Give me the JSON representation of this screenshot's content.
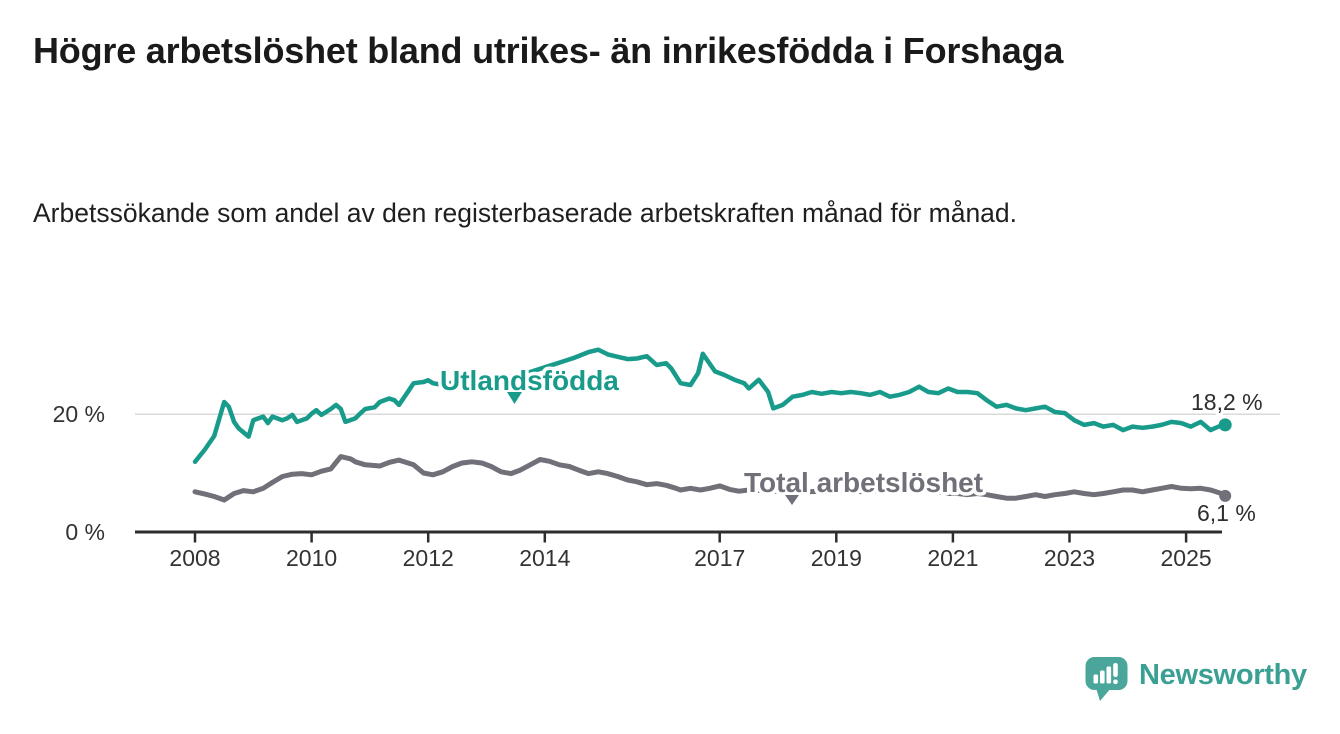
{
  "header": {
    "title": "Högre arbetslöshet bland utrikes- än inrikesfödda i Forshaga",
    "subtitle": "Arbetssökande som andel av den registerbaserade arbetskraften månad för månad."
  },
  "branding": {
    "logo_text": "Newsworthy",
    "logo_icon": "bar-chart-speech-bubble",
    "logo_bubble_color": "#4aa69b",
    "logo_text_color": "#3aa093"
  },
  "chart_data": {
    "type": "line",
    "x_axis": {
      "ticks": [
        2008,
        2010,
        2012,
        2014,
        2017,
        2019,
        2021,
        2023,
        2025
      ],
      "range": [
        2007.9,
        2026.2
      ]
    },
    "y_axis": {
      "ticks": [
        {
          "value": 0,
          "label": "0 %"
        },
        {
          "value": 20,
          "label": "20 %"
        }
      ],
      "range": [
        0,
        33
      ],
      "gridline_at": 20
    },
    "series": [
      {
        "name": "Utlandsfödda",
        "color": "#199b8b",
        "end_label": "18,2 %",
        "end_value": 18.2,
        "points": [
          [
            2008.0,
            11.9
          ],
          [
            2008.17,
            14.0
          ],
          [
            2008.33,
            16.3
          ],
          [
            2008.5,
            22.1
          ],
          [
            2008.58,
            21.3
          ],
          [
            2008.67,
            18.7
          ],
          [
            2008.75,
            17.6
          ],
          [
            2008.92,
            16.2
          ],
          [
            2009.0,
            19.0
          ],
          [
            2009.17,
            19.6
          ],
          [
            2009.25,
            18.5
          ],
          [
            2009.33,
            19.6
          ],
          [
            2009.5,
            19.0
          ],
          [
            2009.58,
            19.3
          ],
          [
            2009.67,
            19.9
          ],
          [
            2009.75,
            18.7
          ],
          [
            2009.92,
            19.3
          ],
          [
            2010.0,
            20.1
          ],
          [
            2010.08,
            20.7
          ],
          [
            2010.17,
            19.9
          ],
          [
            2010.33,
            20.9
          ],
          [
            2010.42,
            21.6
          ],
          [
            2010.5,
            20.9
          ],
          [
            2010.58,
            18.7
          ],
          [
            2010.75,
            19.3
          ],
          [
            2010.83,
            20.1
          ],
          [
            2010.92,
            20.9
          ],
          [
            2011.08,
            21.2
          ],
          [
            2011.17,
            22.1
          ],
          [
            2011.33,
            22.7
          ],
          [
            2011.42,
            22.4
          ],
          [
            2011.5,
            21.6
          ],
          [
            2011.67,
            24.1
          ],
          [
            2011.75,
            25.3
          ],
          [
            2011.92,
            25.5
          ],
          [
            2012.0,
            25.8
          ],
          [
            2012.08,
            25.3
          ],
          [
            2012.25,
            25.0
          ],
          [
            2012.5,
            25.6
          ],
          [
            2012.75,
            26.2
          ],
          [
            2013.0,
            26.5
          ],
          [
            2013.25,
            26.1
          ],
          [
            2013.5,
            26.6
          ],
          [
            2013.75,
            27.2
          ],
          [
            2014.0,
            28.0
          ],
          [
            2014.25,
            28.8
          ],
          [
            2014.5,
            29.6
          ],
          [
            2014.75,
            30.6
          ],
          [
            2014.92,
            31.0
          ],
          [
            2015.08,
            30.2
          ],
          [
            2015.25,
            29.8
          ],
          [
            2015.42,
            29.4
          ],
          [
            2015.58,
            29.5
          ],
          [
            2015.75,
            29.9
          ],
          [
            2015.92,
            28.4
          ],
          [
            2016.08,
            28.7
          ],
          [
            2016.17,
            27.8
          ],
          [
            2016.33,
            25.3
          ],
          [
            2016.5,
            25.0
          ],
          [
            2016.63,
            27.0
          ],
          [
            2016.71,
            30.3
          ],
          [
            2016.92,
            27.3
          ],
          [
            2017.08,
            26.7
          ],
          [
            2017.25,
            25.9
          ],
          [
            2017.42,
            25.3
          ],
          [
            2017.5,
            24.4
          ],
          [
            2017.67,
            25.9
          ],
          [
            2017.83,
            23.8
          ],
          [
            2017.92,
            21.0
          ],
          [
            2018.08,
            21.6
          ],
          [
            2018.25,
            23.0
          ],
          [
            2018.42,
            23.3
          ],
          [
            2018.58,
            23.8
          ],
          [
            2018.75,
            23.5
          ],
          [
            2018.92,
            23.8
          ],
          [
            2019.08,
            23.6
          ],
          [
            2019.25,
            23.8
          ],
          [
            2019.42,
            23.6
          ],
          [
            2019.58,
            23.3
          ],
          [
            2019.75,
            23.8
          ],
          [
            2019.92,
            23.0
          ],
          [
            2020.08,
            23.3
          ],
          [
            2020.25,
            23.8
          ],
          [
            2020.42,
            24.7
          ],
          [
            2020.58,
            23.8
          ],
          [
            2020.75,
            23.6
          ],
          [
            2020.92,
            24.4
          ],
          [
            2021.08,
            23.8
          ],
          [
            2021.25,
            23.8
          ],
          [
            2021.42,
            23.6
          ],
          [
            2021.58,
            22.4
          ],
          [
            2021.75,
            21.3
          ],
          [
            2021.92,
            21.6
          ],
          [
            2022.08,
            21.0
          ],
          [
            2022.25,
            20.7
          ],
          [
            2022.42,
            21.0
          ],
          [
            2022.58,
            21.3
          ],
          [
            2022.75,
            20.4
          ],
          [
            2022.92,
            20.2
          ],
          [
            2023.08,
            19.0
          ],
          [
            2023.25,
            18.2
          ],
          [
            2023.42,
            18.5
          ],
          [
            2023.58,
            17.9
          ],
          [
            2023.75,
            18.2
          ],
          [
            2023.92,
            17.3
          ],
          [
            2024.08,
            17.9
          ],
          [
            2024.25,
            17.7
          ],
          [
            2024.42,
            17.9
          ],
          [
            2024.58,
            18.2
          ],
          [
            2024.75,
            18.7
          ],
          [
            2024.92,
            18.5
          ],
          [
            2025.08,
            17.9
          ],
          [
            2025.25,
            18.7
          ],
          [
            2025.42,
            17.3
          ],
          [
            2025.58,
            18.0
          ],
          [
            2025.67,
            18.2
          ]
        ]
      },
      {
        "name": "Total arbetslöshet",
        "color": "#716f78",
        "end_label": "6,1 %",
        "end_value": 6.1,
        "points": [
          [
            2008.0,
            6.8
          ],
          [
            2008.17,
            6.4
          ],
          [
            2008.33,
            6.0
          ],
          [
            2008.5,
            5.4
          ],
          [
            2008.67,
            6.5
          ],
          [
            2008.83,
            7.0
          ],
          [
            2009.0,
            6.8
          ],
          [
            2009.17,
            7.4
          ],
          [
            2009.33,
            8.4
          ],
          [
            2009.5,
            9.4
          ],
          [
            2009.67,
            9.8
          ],
          [
            2009.83,
            9.9
          ],
          [
            2010.0,
            9.7
          ],
          [
            2010.17,
            10.3
          ],
          [
            2010.33,
            10.7
          ],
          [
            2010.5,
            12.8
          ],
          [
            2010.67,
            12.4
          ],
          [
            2010.75,
            11.9
          ],
          [
            2010.92,
            11.4
          ],
          [
            2011.17,
            11.2
          ],
          [
            2011.33,
            11.8
          ],
          [
            2011.5,
            12.2
          ],
          [
            2011.75,
            11.4
          ],
          [
            2011.92,
            10.0
          ],
          [
            2012.08,
            9.7
          ],
          [
            2012.25,
            10.2
          ],
          [
            2012.42,
            11.1
          ],
          [
            2012.58,
            11.7
          ],
          [
            2012.75,
            11.9
          ],
          [
            2012.92,
            11.7
          ],
          [
            2013.08,
            11.1
          ],
          [
            2013.25,
            10.2
          ],
          [
            2013.42,
            9.9
          ],
          [
            2013.58,
            10.5
          ],
          [
            2013.75,
            11.4
          ],
          [
            2013.92,
            12.3
          ],
          [
            2014.08,
            12.0
          ],
          [
            2014.25,
            11.4
          ],
          [
            2014.42,
            11.1
          ],
          [
            2014.58,
            10.5
          ],
          [
            2014.75,
            9.9
          ],
          [
            2014.92,
            10.2
          ],
          [
            2015.08,
            9.9
          ],
          [
            2015.25,
            9.4
          ],
          [
            2015.42,
            8.8
          ],
          [
            2015.58,
            8.5
          ],
          [
            2015.75,
            8.0
          ],
          [
            2015.92,
            8.2
          ],
          [
            2016.08,
            7.9
          ],
          [
            2016.25,
            7.4
          ],
          [
            2016.33,
            7.1
          ],
          [
            2016.5,
            7.4
          ],
          [
            2016.67,
            7.1
          ],
          [
            2016.83,
            7.4
          ],
          [
            2017.0,
            7.8
          ],
          [
            2017.17,
            7.2
          ],
          [
            2017.33,
            6.9
          ],
          [
            2017.5,
            7.1
          ],
          [
            2017.75,
            7.0
          ],
          [
            2018.0,
            6.9
          ],
          [
            2018.25,
            7.1
          ],
          [
            2018.5,
            6.8
          ],
          [
            2018.75,
            6.9
          ],
          [
            2019.0,
            7.0
          ],
          [
            2019.25,
            6.9
          ],
          [
            2019.5,
            6.8
          ],
          [
            2019.75,
            7.0
          ],
          [
            2020.0,
            7.2
          ],
          [
            2020.25,
            7.6
          ],
          [
            2020.5,
            7.3
          ],
          [
            2020.75,
            6.8
          ],
          [
            2020.92,
            6.5
          ],
          [
            2021.08,
            6.5
          ],
          [
            2021.25,
            6.3
          ],
          [
            2021.42,
            6.5
          ],
          [
            2021.58,
            6.3
          ],
          [
            2021.75,
            6.0
          ],
          [
            2021.92,
            5.7
          ],
          [
            2022.08,
            5.7
          ],
          [
            2022.25,
            6.0
          ],
          [
            2022.42,
            6.3
          ],
          [
            2022.58,
            6.0
          ],
          [
            2022.75,
            6.3
          ],
          [
            2022.92,
            6.5
          ],
          [
            2023.08,
            6.8
          ],
          [
            2023.25,
            6.5
          ],
          [
            2023.42,
            6.3
          ],
          [
            2023.58,
            6.5
          ],
          [
            2023.75,
            6.8
          ],
          [
            2023.92,
            7.1
          ],
          [
            2024.08,
            7.1
          ],
          [
            2024.25,
            6.8
          ],
          [
            2024.42,
            7.1
          ],
          [
            2024.58,
            7.4
          ],
          [
            2024.75,
            7.7
          ],
          [
            2024.92,
            7.4
          ],
          [
            2025.08,
            7.3
          ],
          [
            2025.25,
            7.4
          ],
          [
            2025.42,
            7.1
          ],
          [
            2025.58,
            6.6
          ],
          [
            2025.67,
            6.1
          ]
        ]
      }
    ]
  }
}
